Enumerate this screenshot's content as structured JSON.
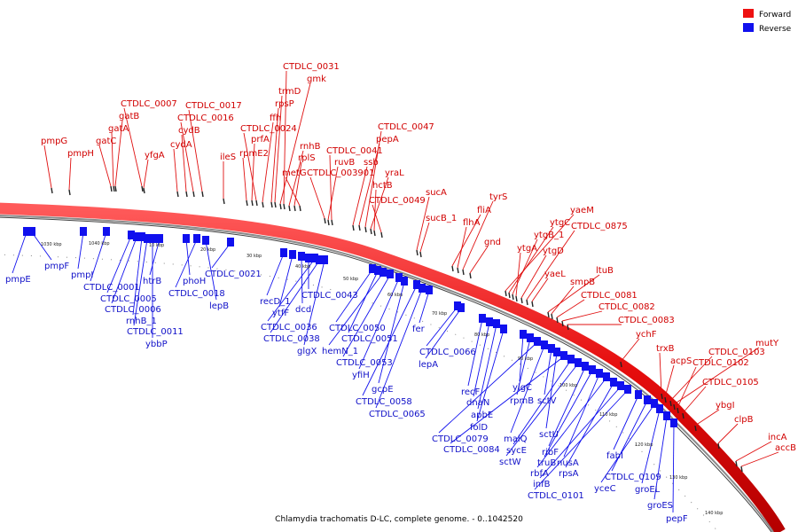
{
  "colors": {
    "forward": "#e01010",
    "reverse": "#1010ee",
    "backbone": "#8a8a8a"
  },
  "legend": [
    {
      "label": "Forward",
      "color": "#ee1111"
    },
    {
      "label": "Reverse",
      "color": "#1111ee"
    }
  ],
  "caption": "Chlamydia trachomatis D-LC, complete genome. - 0..1042520",
  "forward_labels": [
    "pmpG",
    "pmpH",
    "gatC",
    "gatA",
    "gatB",
    "CTDLC_0007",
    "yfgA",
    "cydA",
    "cydB",
    "CTDLC_0016",
    "CTDLC_0017",
    "ileS",
    "rpmE2",
    "prfA",
    "CTDLC_0024",
    "ffh",
    "rpsP",
    "trmD",
    "gmk",
    "CTDLC_0031",
    "rnhB",
    "rplS",
    "metG",
    "CTDLC_003901",
    "ruvB",
    "CTDLC_0041",
    "ssb",
    "pepA",
    "CTDLC_0047",
    "yraL",
    "hctB",
    "CTDLC_0049",
    "sucA",
    "sucB_1",
    "fliA",
    "flhA",
    "tyrS",
    "gnd",
    "yaeM",
    "ytgC",
    "ytgB_1",
    "ytgA",
    "ytgD",
    "CTDLC_0875",
    "yaeL",
    "ltuB",
    "smpB",
    "CTDLC_0081",
    "CTDLC_0082",
    "CTDLC_0083",
    "ychF",
    "trxB",
    "acpS",
    "CTDLC_0103",
    "mutY",
    "CTDLC_0102",
    "CTDLC_0105",
    "ybgI",
    "clpB",
    "incA",
    "accB"
  ],
  "reverse_labels": [
    "pmpE",
    "pmpF",
    "pmpI",
    "CTDLC_0001",
    "CTDLC_0005",
    "CTDLC_0006",
    "rnhB_1",
    "CTDLC_0011",
    "ybbP",
    "htrB",
    "phoH",
    "CTDLC_0018",
    "lepB",
    "CTDLC_0021",
    "recD_1",
    "ytfF",
    "dcd",
    "CTDLC_0043",
    "CTDLC_0036",
    "CTDLC_0038",
    "glgX",
    "CTDLC_0050",
    "CTDLC_0051",
    "hemN_1",
    "CTDLC_0053",
    "yfiH",
    "gcpE",
    "CTDLC_0058",
    "CTDLC_0065",
    "fer",
    "CTDLC_0066",
    "lepA",
    "recF",
    "dnaN",
    "apbE",
    "folD",
    "yigC",
    "rpmB",
    "CTDLC_0079",
    "malQ",
    "sctV",
    "sctU",
    "CTDLC_0084",
    "sycE",
    "sctW",
    "ribF",
    "truB",
    "nusA",
    "rbfA",
    "rpsA",
    "infB",
    "CTDLC_0101",
    "fabI",
    "CTDLC_0109",
    "yceC",
    "groEL",
    "groES",
    "pepF"
  ],
  "kbp_ticks": [
    "1030 kbp",
    "1040 kbp",
    "10 kbp",
    "20 kbp",
    "30 kbp",
    "40 kbp",
    "50 kbp",
    "60 kbp",
    "70 kbp",
    "80 kbp",
    "90 kbp",
    "100 kbp",
    "110 kbp",
    "120 kbp",
    "130 kbp",
    "140 kbp"
  ]
}
